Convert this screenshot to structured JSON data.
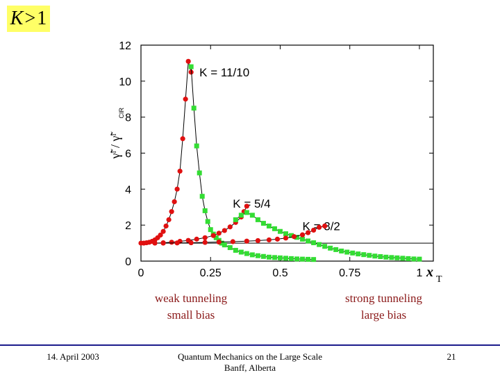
{
  "title_box": {
    "var": "K",
    "rel": ">",
    "num": "1"
  },
  "chart_data": {
    "type": "scatter",
    "x_ticks": [
      "0",
      "0.25",
      "0.5",
      "0.75",
      "1"
    ],
    "y_ticks": [
      "0",
      "2",
      "4",
      "6",
      "8",
      "10",
      "12"
    ],
    "xlim": [
      0,
      1.05
    ],
    "ylim": [
      0,
      12
    ],
    "xlabel_main": "x",
    "xlabel_sub": "T",
    "ylabel": "γ̃ˡ / γ̃ˡ",
    "ylabel_sub": "CIR",
    "reference_line_y": 1.0,
    "annotations": [
      "K = 11/10",
      "K = 5/4",
      "K = 3/2"
    ],
    "series": [
      {
        "color": "#e01010",
        "marker": "circle",
        "x": [
          0.0,
          0.01,
          0.02,
          0.03,
          0.04,
          0.05,
          0.06,
          0.07,
          0.08,
          0.09,
          0.1,
          0.11,
          0.12,
          0.13,
          0.14,
          0.15,
          0.16,
          0.17,
          0.18
        ],
        "y": [
          1.0,
          1.0,
          1.02,
          1.05,
          1.1,
          1.18,
          1.3,
          1.45,
          1.65,
          1.95,
          2.3,
          2.75,
          3.3,
          4.0,
          5.0,
          6.8,
          9.0,
          11.1,
          10.5
        ]
      },
      {
        "color": "#33dd33",
        "marker": "square",
        "x": [
          0.18,
          0.19,
          0.2,
          0.21,
          0.22,
          0.23,
          0.24,
          0.25,
          0.26,
          0.27,
          0.28,
          0.29,
          0.3,
          0.32,
          0.34,
          0.36,
          0.38,
          0.4,
          0.42,
          0.44,
          0.46,
          0.48,
          0.5,
          0.52,
          0.54,
          0.56,
          0.58,
          0.6,
          0.62
        ],
        "y": [
          10.8,
          8.5,
          6.4,
          4.9,
          3.6,
          2.8,
          2.2,
          1.75,
          1.5,
          1.3,
          1.15,
          1.0,
          0.9,
          0.75,
          0.6,
          0.5,
          0.42,
          0.35,
          0.3,
          0.26,
          0.22,
          0.2,
          0.18,
          0.16,
          0.14,
          0.12,
          0.11,
          0.1,
          0.09
        ]
      },
      {
        "color": "#e01010",
        "marker": "circle",
        "x": [
          0.05,
          0.08,
          0.11,
          0.14,
          0.17,
          0.2,
          0.23,
          0.26,
          0.28,
          0.3,
          0.32,
          0.34,
          0.36,
          0.37,
          0.38
        ],
        "y": [
          1.0,
          1.02,
          1.05,
          1.1,
          1.15,
          1.22,
          1.3,
          1.42,
          1.55,
          1.7,
          1.9,
          2.15,
          2.45,
          2.75,
          3.05
        ]
      },
      {
        "color": "#33dd33",
        "marker": "square",
        "x": [
          0.34,
          0.36,
          0.38,
          0.4,
          0.42,
          0.44,
          0.46,
          0.48,
          0.5,
          0.52,
          0.54,
          0.56,
          0.58,
          0.6,
          0.62,
          0.64,
          0.66,
          0.68,
          0.7,
          0.72,
          0.74,
          0.76,
          0.78,
          0.8,
          0.82,
          0.84,
          0.86,
          0.88,
          0.9,
          0.92,
          0.94,
          0.96,
          0.98,
          1.0
        ],
        "y": [
          2.3,
          2.55,
          2.7,
          2.55,
          2.3,
          2.1,
          1.95,
          1.8,
          1.65,
          1.52,
          1.42,
          1.32,
          1.22,
          1.12,
          1.02,
          0.92,
          0.82,
          0.72,
          0.64,
          0.56,
          0.5,
          0.45,
          0.4,
          0.36,
          0.32,
          0.28,
          0.25,
          0.22,
          0.2,
          0.18,
          0.16,
          0.14,
          0.12,
          0.11
        ]
      },
      {
        "color": "#e01010",
        "marker": "circle",
        "x": [
          0.08,
          0.13,
          0.18,
          0.23,
          0.28,
          0.33,
          0.38,
          0.42,
          0.46,
          0.49,
          0.52,
          0.55,
          0.58,
          0.6,
          0.62,
          0.64,
          0.66
        ],
        "y": [
          1.0,
          1.01,
          1.02,
          1.04,
          1.06,
          1.08,
          1.11,
          1.14,
          1.18,
          1.22,
          1.28,
          1.36,
          1.46,
          1.58,
          1.72,
          1.88,
          1.95
        ]
      }
    ]
  },
  "captions": {
    "left_line1": "weak tunneling",
    "left_line2": "small bias",
    "right_line1": "strong tunneling",
    "right_line2": "large bias"
  },
  "footer": {
    "date": "14. April 2003",
    "conference_line1": "Quantum Mechanics on the Large Scale",
    "conference_line2": "Banff, Alberta",
    "page_number": "21"
  }
}
